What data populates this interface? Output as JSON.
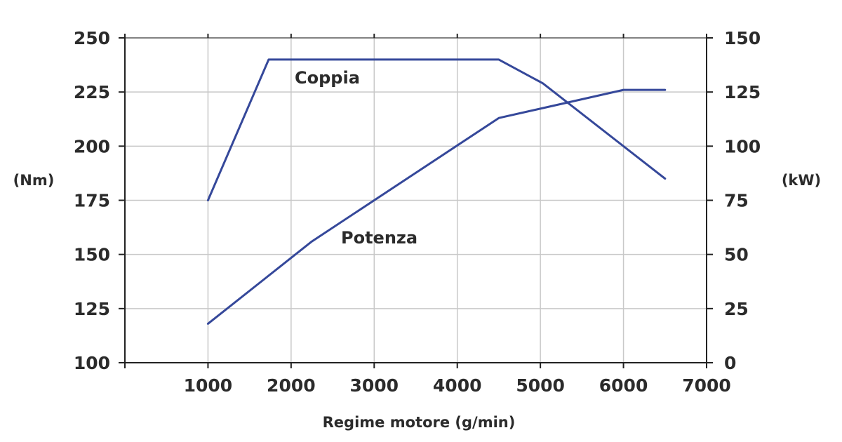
{
  "chart_data": {
    "type": "line",
    "x_axis": {
      "label": "Regime motore (g/min)",
      "ticks": [
        1000,
        2000,
        3000,
        4000,
        5000,
        6000,
        7000
      ],
      "range": [
        0,
        7000
      ]
    },
    "y_left": {
      "label": "(Nm)",
      "ticks": [
        100,
        125,
        150,
        175,
        200,
        225,
        250
      ],
      "range": [
        100,
        250
      ]
    },
    "y_right": {
      "label": "(kW)",
      "ticks": [
        0,
        25,
        50,
        75,
        100,
        125,
        150
      ],
      "range": [
        0,
        150
      ]
    },
    "grid": true,
    "line_color": "#35489a",
    "series": [
      {
        "name": "Coppia",
        "axis": "left",
        "x": [
          1000,
          1730,
          4500,
          5030,
          6500
        ],
        "y": [
          175,
          240,
          240,
          229,
          185
        ]
      },
      {
        "name": "Potenza",
        "axis": "right",
        "x": [
          1000,
          2250,
          4500,
          6000,
          6500
        ],
        "y": [
          18,
          56,
          113,
          126,
          126
        ]
      }
    ]
  }
}
